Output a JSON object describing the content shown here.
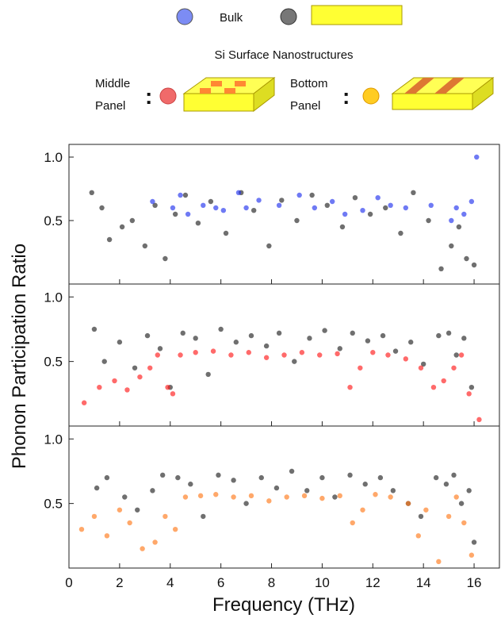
{
  "legend": {
    "bulk": "Bulk",
    "subtitle": "Si Surface Nanostructures",
    "middle": [
      "Middle",
      "Panel"
    ],
    "bottom": [
      "Bottom",
      "Panel"
    ]
  },
  "x_label": "Frequency (THz)",
  "y_label": "Phonon Participation Ratio",
  "chart_data": [
    {
      "type": "scatter",
      "xlim": [
        0,
        17
      ],
      "ylim": [
        0,
        1.1
      ],
      "xticks": [
        0,
        2,
        4,
        6,
        8,
        10,
        12,
        14,
        16
      ],
      "yticks": [
        0.5,
        {
          "value": 1,
          "label": "1.0"
        }
      ],
      "series": [
        {
          "color": "#222222",
          "x": [
            0.9,
            1.3,
            1.6,
            2.1,
            2.5,
            3.0,
            3.4,
            3.8,
            4.2,
            4.6,
            5.1,
            5.6,
            6.2,
            6.8,
            7.3,
            7.9,
            8.4,
            9.0,
            9.6,
            10.2,
            10.8,
            11.3,
            11.9,
            12.5,
            13.1,
            13.6,
            14.2,
            14.7,
            15.1,
            15.4,
            15.7,
            16.0
          ],
          "values": [
            0.72,
            0.6,
            0.35,
            0.45,
            0.5,
            0.3,
            0.62,
            0.2,
            0.55,
            0.7,
            0.48,
            0.65,
            0.4,
            0.72,
            0.58,
            0.3,
            0.66,
            0.5,
            0.7,
            0.62,
            0.45,
            0.68,
            0.55,
            0.6,
            0.4,
            0.72,
            0.5,
            0.12,
            0.3,
            0.45,
            0.2,
            0.15
          ]
        },
        {
          "color": "#2233ee",
          "x": [
            3.3,
            4.1,
            4.4,
            4.7,
            5.3,
            5.8,
            6.1,
            6.7,
            7.0,
            7.5,
            8.3,
            9.1,
            9.7,
            10.4,
            10.9,
            11.6,
            12.2,
            12.7,
            13.3,
            14.3,
            15.1,
            15.3,
            15.6,
            15.9,
            16.1
          ],
          "values": [
            0.65,
            0.6,
            0.7,
            0.55,
            0.62,
            0.6,
            0.58,
            0.72,
            0.6,
            0.66,
            0.62,
            0.7,
            0.6,
            0.65,
            0.55,
            0.58,
            0.68,
            0.62,
            0.6,
            0.62,
            0.5,
            0.6,
            0.55,
            0.65,
            1.0
          ]
        }
      ]
    },
    {
      "type": "scatter",
      "xlim": [
        0,
        17
      ],
      "ylim": [
        0,
        1.1
      ],
      "xticks": [
        0,
        2,
        4,
        6,
        8,
        10,
        12,
        14,
        16
      ],
      "yticks": [
        0.5,
        {
          "value": 1,
          "label": "1.0"
        }
      ],
      "series": [
        {
          "color": "#222222",
          "x": [
            1.0,
            1.4,
            2.0,
            2.6,
            3.1,
            3.6,
            4.0,
            4.5,
            5.0,
            5.5,
            6.0,
            6.6,
            7.2,
            7.8,
            8.3,
            8.9,
            9.5,
            10.1,
            10.7,
            11.2,
            11.8,
            12.4,
            12.9,
            13.5,
            14.0,
            14.6,
            15.0,
            15.3,
            15.6,
            15.9
          ],
          "values": [
            0.75,
            0.5,
            0.65,
            0.45,
            0.7,
            0.6,
            0.3,
            0.72,
            0.68,
            0.4,
            0.75,
            0.65,
            0.7,
            0.62,
            0.72,
            0.5,
            0.68,
            0.74,
            0.6,
            0.72,
            0.66,
            0.7,
            0.58,
            0.65,
            0.48,
            0.7,
            0.72,
            0.55,
            0.68,
            0.3
          ]
        },
        {
          "color": "#ff1a1a",
          "x": [
            0.6,
            1.2,
            1.8,
            2.3,
            2.8,
            3.2,
            3.5,
            3.9,
            4.1,
            4.4,
            5.0,
            5.7,
            6.4,
            7.1,
            7.8,
            8.5,
            9.2,
            9.9,
            10.6,
            11.1,
            11.5,
            12.0,
            12.6,
            13.3,
            13.9,
            14.4,
            14.8,
            15.2,
            15.5,
            15.8,
            16.2
          ],
          "values": [
            0.18,
            0.3,
            0.35,
            0.28,
            0.38,
            0.45,
            0.55,
            0.3,
            0.25,
            0.55,
            0.57,
            0.58,
            0.55,
            0.57,
            0.53,
            0.55,
            0.57,
            0.55,
            0.56,
            0.3,
            0.45,
            0.57,
            0.55,
            0.52,
            0.45,
            0.3,
            0.35,
            0.45,
            0.55,
            0.25,
            0.05
          ]
        }
      ]
    },
    {
      "type": "scatter",
      "xlim": [
        0,
        17
      ],
      "ylim": [
        0,
        1.1
      ],
      "xticks": [
        0,
        2,
        4,
        6,
        8,
        10,
        12,
        14,
        16
      ],
      "yticks": [
        0.5,
        {
          "value": 1,
          "label": "1.0"
        }
      ],
      "series": [
        {
          "color": "#222222",
          "x": [
            1.1,
            1.5,
            2.2,
            2.7,
            3.3,
            3.7,
            4.3,
            4.8,
            5.3,
            5.9,
            6.5,
            7.0,
            7.6,
            8.2,
            8.8,
            9.4,
            10.0,
            10.5,
            11.1,
            11.7,
            12.3,
            12.8,
            13.4,
            13.9,
            14.5,
            14.9,
            15.2,
            15.5,
            15.8,
            16.0
          ],
          "values": [
            0.62,
            0.7,
            0.55,
            0.45,
            0.6,
            0.72,
            0.7,
            0.65,
            0.4,
            0.72,
            0.68,
            0.5,
            0.7,
            0.62,
            0.75,
            0.6,
            0.7,
            0.55,
            0.72,
            0.65,
            0.7,
            0.6,
            0.5,
            0.4,
            0.7,
            0.65,
            0.72,
            0.5,
            0.6,
            0.2
          ]
        },
        {
          "color": "#ff7a1a",
          "x": [
            0.5,
            1.0,
            1.5,
            2.0,
            2.4,
            2.9,
            3.4,
            3.8,
            4.2,
            4.6,
            5.2,
            5.8,
            6.5,
            7.2,
            7.9,
            8.6,
            9.3,
            10.0,
            10.7,
            11.2,
            11.6,
            12.1,
            12.7,
            13.4,
            13.8,
            14.1,
            14.6,
            15.0,
            15.3,
            15.6,
            15.9
          ],
          "values": [
            0.3,
            0.4,
            0.25,
            0.45,
            0.35,
            0.15,
            0.2,
            0.4,
            0.3,
            0.55,
            0.56,
            0.57,
            0.55,
            0.56,
            0.52,
            0.55,
            0.56,
            0.54,
            0.56,
            0.35,
            0.45,
            0.57,
            0.55,
            0.5,
            0.25,
            0.45,
            0.05,
            0.4,
            0.55,
            0.35,
            0.1
          ]
        }
      ]
    }
  ]
}
